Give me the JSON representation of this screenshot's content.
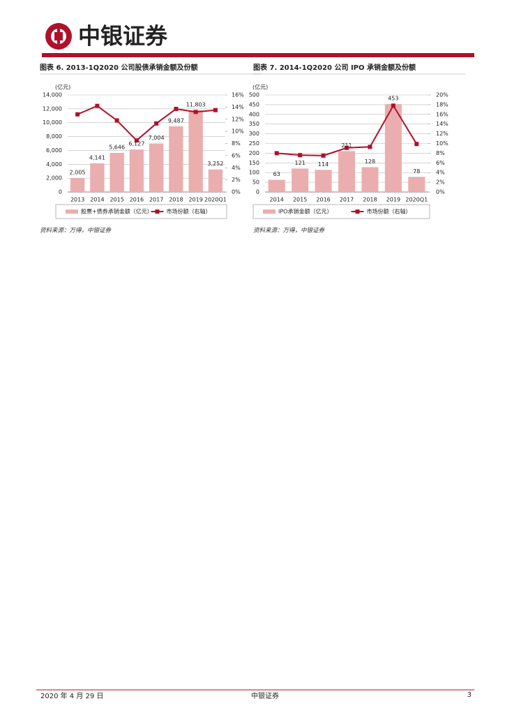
{
  "header": {
    "logo_text": "中银证券"
  },
  "chart_data": [
    {
      "type": "combo",
      "title": "图表 6. 2013-1Q2020 公司股债承销金额及份额",
      "y_unit_label": "(亿元)",
      "categories": [
        "2013",
        "2014",
        "2015",
        "2016",
        "2017",
        "2018",
        "2019",
        "2020Q1"
      ],
      "series": [
        {
          "name": "股票+债券承销金额（亿元）",
          "type": "bar",
          "color": "#eaaeae",
          "values": [
            2005,
            4141,
            5646,
            6127,
            7004,
            9487,
            11803,
            3252
          ],
          "value_labels": [
            "2,005",
            "4,141",
            "5,646",
            "6,127",
            "7,004",
            "9,487",
            "11,803",
            "3,252"
          ]
        },
        {
          "name": "市场份额（右轴）",
          "type": "line",
          "axis": "y2",
          "color": "#b0102a",
          "values": [
            12.8,
            14.2,
            11.8,
            8.5,
            11.3,
            13.7,
            13.2,
            13.5
          ]
        }
      ],
      "ylim": [
        0,
        14000
      ],
      "yticks": [
        {
          "value": 0,
          "label": "0"
        },
        {
          "value": 2000,
          "label": "2,000"
        },
        {
          "value": 4000,
          "label": "4,000"
        },
        {
          "value": 6000,
          "label": "6,000"
        },
        {
          "value": 8000,
          "label": "8,000"
        },
        {
          "value": 10000,
          "label": "10,000"
        },
        {
          "value": 12000,
          "label": "12,000"
        },
        {
          "value": 14000,
          "label": "14,000"
        }
      ],
      "y2lim": [
        0,
        16
      ],
      "y2ticks": [
        {
          "value": 0,
          "label": "0%"
        },
        {
          "value": 2,
          "label": "2%"
        },
        {
          "value": 4,
          "label": "4%"
        },
        {
          "value": 6,
          "label": "6%"
        },
        {
          "value": 8,
          "label": "8%"
        },
        {
          "value": 10,
          "label": "10%"
        },
        {
          "value": 12,
          "label": "12%"
        },
        {
          "value": 14,
          "label": "14%"
        },
        {
          "value": 16,
          "label": "16%"
        }
      ],
      "grid": true,
      "source": "资料来源：万得，中银证券"
    },
    {
      "type": "combo",
      "title": "图表 7. 2014-1Q2020 公司 IPO 承销金额及份额",
      "y_unit_label": "(亿元)",
      "categories": [
        "2014",
        "2015",
        "2016",
        "2017",
        "2018",
        "2019",
        "2020Q1"
      ],
      "series": [
        {
          "name": "IPO承销金额（亿元）",
          "type": "bar",
          "color": "#eaaeae",
          "values": [
            63,
            121,
            114,
            211,
            128,
            453,
            78
          ]
        },
        {
          "name": "市场份额（右轴）",
          "type": "line",
          "axis": "y2",
          "color": "#b0102a",
          "values": [
            8.0,
            7.6,
            7.5,
            9.1,
            9.3,
            17.8,
            9.9
          ]
        }
      ],
      "ylim": [
        0,
        500
      ],
      "yticks": [
        0,
        50,
        100,
        150,
        200,
        250,
        300,
        350,
        400,
        450,
        500
      ],
      "y2lim": [
        0,
        20
      ],
      "y2ticks": [
        {
          "value": 0,
          "label": "0%"
        },
        {
          "value": 2,
          "label": "2%"
        },
        {
          "value": 4,
          "label": "4%"
        },
        {
          "value": 6,
          "label": "6%"
        },
        {
          "value": 8,
          "label": "8%"
        },
        {
          "value": 10,
          "label": "10%"
        },
        {
          "value": 12,
          "label": "12%"
        },
        {
          "value": 14,
          "label": "14%"
        },
        {
          "value": 16,
          "label": "16%"
        },
        {
          "value": 18,
          "label": "18%"
        },
        {
          "value": 20,
          "label": "20%"
        }
      ],
      "grid": true,
      "source": "资料来源：万得，中银证券"
    }
  ],
  "footer": {
    "date": "2020 年 4 月 29 日",
    "company": "中银证券",
    "page": "3"
  }
}
